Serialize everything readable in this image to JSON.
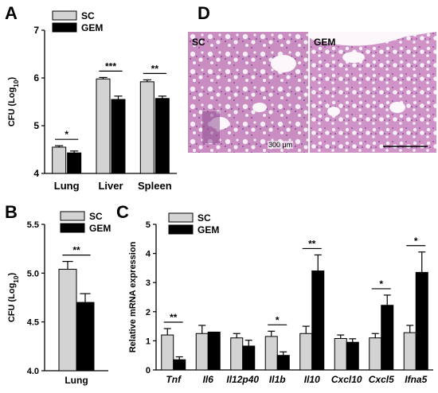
{
  "panels": {
    "A": {
      "letter": "A"
    },
    "B": {
      "letter": "B"
    },
    "C": {
      "letter": "C"
    },
    "D": {
      "letter": "D",
      "left_label": "SC",
      "right_label": "GEM",
      "scale_text": "300 μm"
    }
  },
  "chart_data": [
    {
      "panel": "A",
      "type": "bar",
      "categories": [
        "Lung",
        "Liver",
        "Spleen"
      ],
      "series": [
        {
          "name": "SC",
          "values": [
            4.55,
            5.98,
            5.92
          ],
          "errors": [
            0.03,
            0.03,
            0.04
          ]
        },
        {
          "name": "GEM",
          "values": [
            4.43,
            5.55,
            5.57
          ],
          "errors": [
            0.04,
            0.07,
            0.05
          ]
        }
      ],
      "ylabel": "CFU (Log10)",
      "ylim": [
        4,
        7
      ],
      "yticks": [
        "4",
        "5",
        "6",
        "7"
      ],
      "significance": [
        "*",
        "***",
        "**"
      ],
      "legend": "top-left",
      "colors": {
        "SC": "#d3d3d3",
        "GEM": "#000000"
      }
    },
    {
      "panel": "B",
      "type": "bar",
      "categories": [
        "Lung"
      ],
      "series": [
        {
          "name": "SC",
          "values": [
            5.04
          ],
          "errors": [
            0.08
          ]
        },
        {
          "name": "GEM",
          "values": [
            4.7
          ],
          "errors": [
            0.09
          ]
        }
      ],
      "ylabel": "CFU (Log10)",
      "ylim": [
        4.0,
        5.5
      ],
      "yticks": [
        "4.0",
        "4.5",
        "5.0",
        "5.5"
      ],
      "significance": [
        "**"
      ],
      "legend": "top-left",
      "colors": {
        "SC": "#d3d3d3",
        "GEM": "#000000"
      }
    },
    {
      "panel": "C",
      "type": "bar",
      "categories": [
        "Tnf",
        "Il6",
        "Il12p40",
        "Il1b",
        "Il10",
        "Cxcl10",
        "Cxcl5",
        "Ifna5"
      ],
      "series": [
        {
          "name": "SC",
          "values": [
            1.2,
            1.25,
            1.1,
            1.15,
            1.25,
            1.08,
            1.1,
            1.28
          ],
          "errors": [
            0.22,
            0.28,
            0.15,
            0.18,
            0.25,
            0.12,
            0.15,
            0.25
          ]
        },
        {
          "name": "GEM",
          "values": [
            0.35,
            1.3,
            0.82,
            0.5,
            3.4,
            0.95,
            2.22,
            3.35
          ],
          "errors": [
            0.1,
            0.0,
            0.2,
            0.12,
            0.55,
            0.12,
            0.35,
            0.7
          ]
        }
      ],
      "ylabel": "Relative mRNA expression",
      "ylim": [
        0,
        5
      ],
      "yticks": [
        "0",
        "1",
        "2",
        "3",
        "4",
        "5"
      ],
      "significance": [
        "**",
        "",
        "",
        "*",
        "**",
        "",
        "*",
        "*"
      ],
      "legend": "top-left",
      "colors": {
        "SC": "#d3d3d3",
        "GEM": "#000000"
      }
    }
  ]
}
